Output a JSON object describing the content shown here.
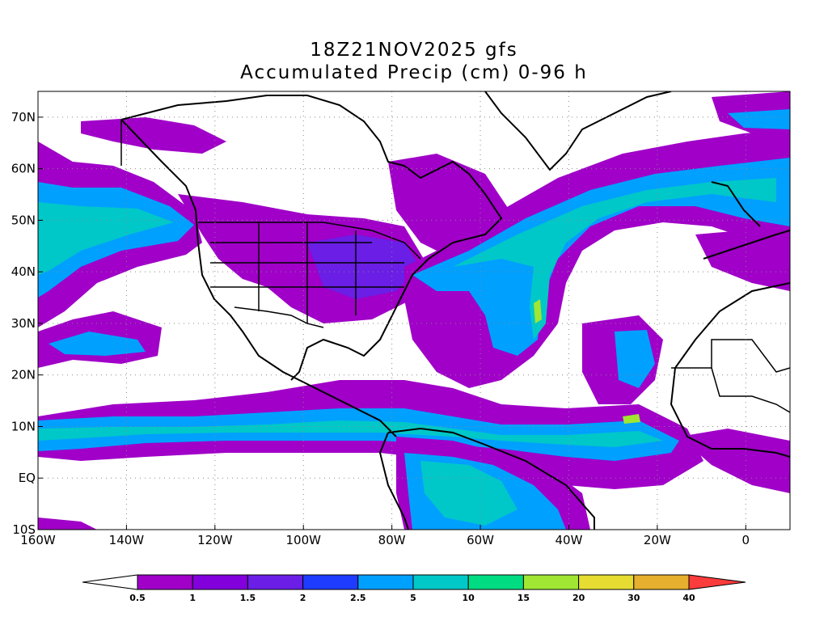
{
  "title": {
    "line1": "18Z21NOV2025 gfs",
    "line2": "Accumulated Precip (cm) 0-96 h"
  },
  "map": {
    "lon_range": [
      -160,
      10
    ],
    "lat_range": [
      -10,
      75
    ],
    "lat_ticks": [
      "70N",
      "60N",
      "50N",
      "40N",
      "30N",
      "20N",
      "10N",
      "EQ",
      "10S"
    ],
    "lat_values": [
      70,
      60,
      50,
      40,
      30,
      20,
      10,
      0,
      -10
    ],
    "lon_ticks": [
      "160W",
      "140W",
      "120W",
      "100W",
      "80W",
      "60W",
      "40W",
      "20W",
      "0"
    ],
    "lon_values": [
      -160,
      -140,
      -120,
      -100,
      -80,
      -60,
      -40,
      -20,
      0
    ],
    "gridlines": "dotted"
  },
  "colorbar": {
    "labels": [
      "0.5",
      "1",
      "1.5",
      "2",
      "2.5",
      "5",
      "10",
      "15",
      "20",
      "30",
      "40"
    ],
    "colors": [
      "#a000c8",
      "#8200dc",
      "#6a1ee6",
      "#1e3cff",
      "#00a0ff",
      "#00c8c8",
      "#00dc82",
      "#a0e632",
      "#e6dc32",
      "#e6af2d",
      "#f08228",
      "#fa3c3c"
    ]
  },
  "legend": {
    "shades": {
      "0.5-1": "#a000c8",
      "1-1.5": "#8200dc",
      "1.5-2": "#6a1ee6",
      "2-2.5": "#1e3cff",
      "2.5-5": "#00a0ff",
      "5-10": "#00c8c8",
      "10-15": "#00dc82"
    }
  }
}
